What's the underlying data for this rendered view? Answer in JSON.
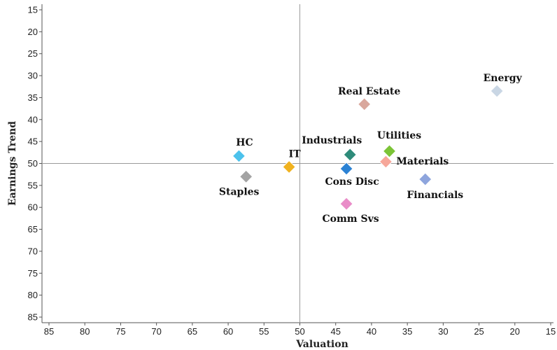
{
  "chart_data": {
    "type": "scatter",
    "xlabel": "Valuation",
    "ylabel": "Earnings Trend",
    "xlim": [
      85,
      15
    ],
    "ylim": [
      15,
      85
    ],
    "x_reversed": true,
    "y_reversed": true,
    "x_ticks": [
      85,
      80,
      75,
      70,
      65,
      60,
      55,
      50,
      45,
      40,
      35,
      30,
      25,
      20,
      15
    ],
    "y_ticks": [
      15,
      20,
      25,
      30,
      35,
      40,
      45,
      50,
      55,
      60,
      65,
      70,
      75,
      80,
      85
    ],
    "reference_lines": {
      "x": 50,
      "y": 50
    },
    "grid": false,
    "marker": "diamond",
    "points": [
      {
        "label": "Energy",
        "x": 22.5,
        "y": 33.5,
        "color": "#c9d6e4"
      },
      {
        "label": "Real Estate",
        "x": 41.0,
        "y": 36.5,
        "color": "#d9a79c"
      },
      {
        "label": "Utilities",
        "x": 37.5,
        "y": 47.2,
        "color": "#7cc437"
      },
      {
        "label": "Industrials",
        "x": 43.0,
        "y": 48.0,
        "color": "#2e8b7a"
      },
      {
        "label": "HC",
        "x": 58.5,
        "y": 48.3,
        "color": "#4cc2ec"
      },
      {
        "label": "IT",
        "x": 51.5,
        "y": 50.8,
        "color": "#f0b21f"
      },
      {
        "label": "Materials",
        "x": 38.0,
        "y": 49.6,
        "color": "#f6a79a"
      },
      {
        "label": "Cons Disc",
        "x": 43.5,
        "y": 51.2,
        "color": "#2b82d4"
      },
      {
        "label": "Staples",
        "x": 57.5,
        "y": 53.0,
        "color": "#a3a3a3"
      },
      {
        "label": "Financials",
        "x": 32.5,
        "y": 53.6,
        "color": "#8ea5dd"
      },
      {
        "label": "Comm Svs",
        "x": 43.5,
        "y": 59.2,
        "color": "#e98cc8"
      }
    ]
  }
}
